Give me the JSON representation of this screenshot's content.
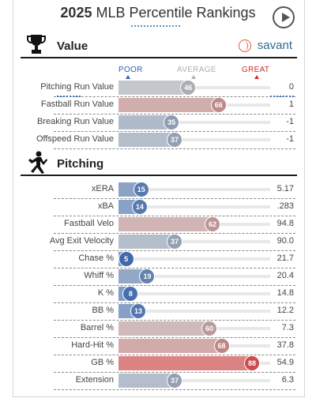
{
  "header": {
    "year": "2025",
    "title_rest": " MLB Percentile Rankings"
  },
  "sections": {
    "value": {
      "label": "Value",
      "brand": "savant"
    },
    "pitching": {
      "label": "Pitching"
    }
  },
  "scale": {
    "poor": "POOR",
    "average": "AVERAGE",
    "great": "GREAT"
  },
  "colors": {
    "poor": "#3261ab",
    "average": "#b6b6b6",
    "great": "#d22d2d"
  },
  "chart_data": {
    "type": "bar",
    "xlim": [
      0,
      100
    ],
    "groups": [
      {
        "section": "Value",
        "rows": [
          {
            "metric": "Pitching Run Value",
            "percentile": 46,
            "value": "0"
          },
          {
            "metric": "Fastball Run Value",
            "percentile": 66,
            "value": "1"
          },
          {
            "metric": "Breaking Run Value",
            "percentile": 35,
            "value": "-1"
          },
          {
            "metric": "Offspeed Run Value",
            "percentile": 37,
            "value": "-1"
          }
        ]
      },
      {
        "section": "Pitching",
        "rows": [
          {
            "metric": "xERA",
            "percentile": 15,
            "value": "5.17"
          },
          {
            "metric": "xBA",
            "percentile": 14,
            "value": ".283"
          },
          {
            "metric": "Fastball Velo",
            "percentile": 62,
            "value": "94.8"
          },
          {
            "metric": "Avg Exit Velocity",
            "percentile": 37,
            "value": "90.0"
          },
          {
            "metric": "Chase %",
            "percentile": 5,
            "value": "21.7"
          },
          {
            "metric": "Whiff %",
            "percentile": 19,
            "value": "20.4"
          },
          {
            "metric": "K %",
            "percentile": 8,
            "value": "14.8"
          },
          {
            "metric": "BB %",
            "percentile": 13,
            "value": "12.2"
          },
          {
            "metric": "Barrel %",
            "percentile": 60,
            "value": "7.3"
          },
          {
            "metric": "Hard-Hit %",
            "percentile": 68,
            "value": "37.8"
          },
          {
            "metric": "GB %",
            "percentile": 88,
            "value": "54.9"
          },
          {
            "metric": "Extension",
            "percentile": 37,
            "value": "6.3"
          }
        ]
      }
    ]
  }
}
